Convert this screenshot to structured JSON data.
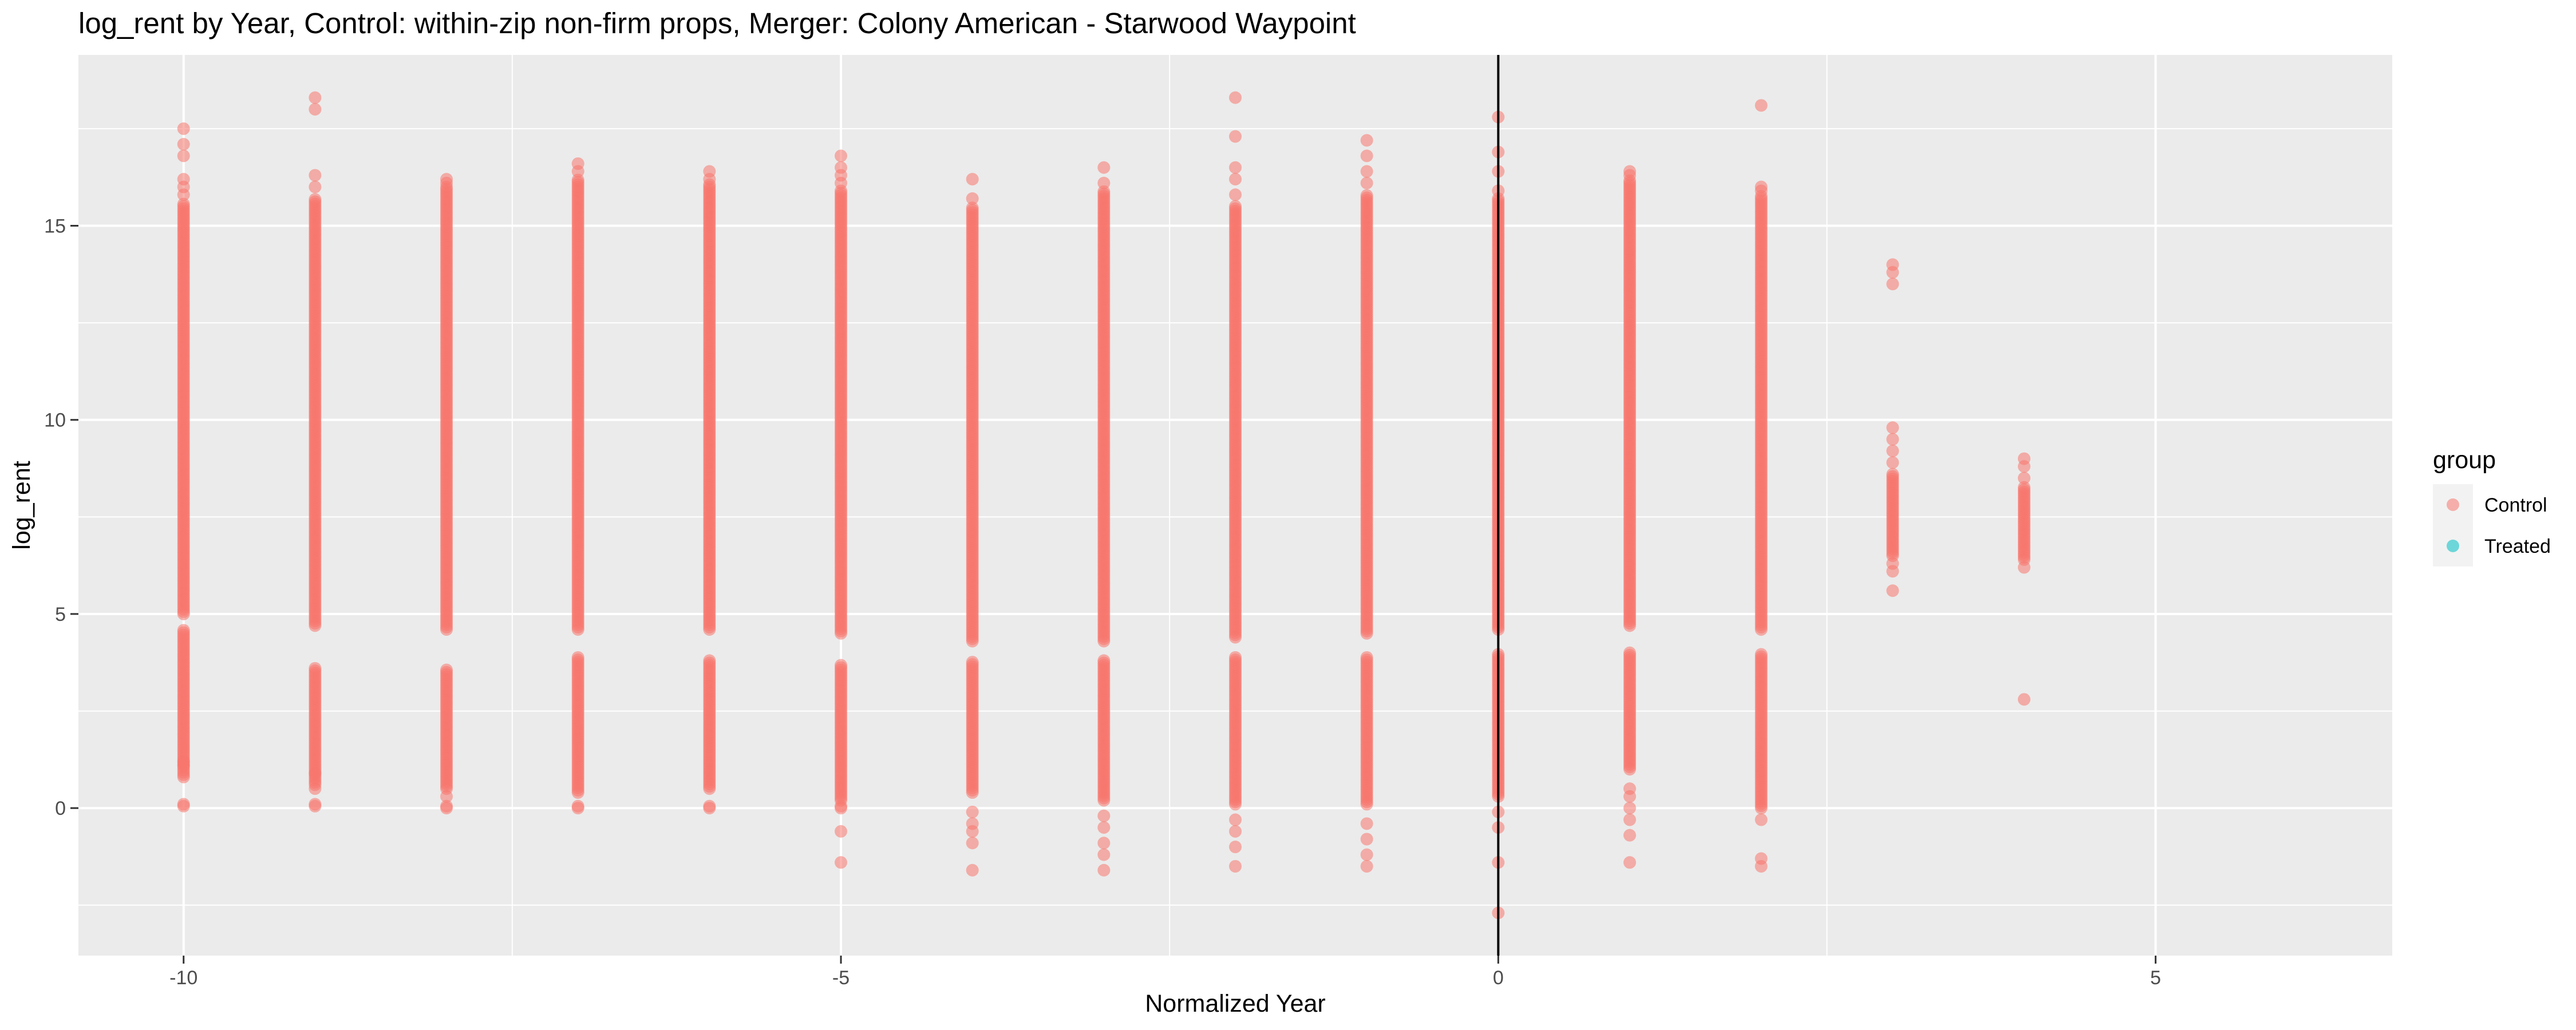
{
  "chart_data": {
    "type": "scatter",
    "title": "log_rent by Year, Control: within-zip non-firm props, Merger: Colony American - Starwood Waypoint",
    "xlabel": "Normalized Year",
    "ylabel": "log_rent",
    "xlim": [
      -10.8,
      6.8
    ],
    "ylim": [
      -3.8,
      19.4
    ],
    "x_ticks": [
      -10,
      -5,
      0,
      5
    ],
    "y_ticks": [
      0,
      5,
      10,
      15
    ],
    "x_tick_labels": [
      "-10",
      "-5",
      "0",
      "5"
    ],
    "y_tick_labels": [
      "0",
      "5",
      "10",
      "15"
    ],
    "vline_x": 0,
    "background": "#ebebeb",
    "grid": true,
    "legend": {
      "title": "group",
      "placement": "right",
      "entries": [
        {
          "name": "Control",
          "color": "#f8766d"
        },
        {
          "name": "Treated",
          "color": "#00bfc4"
        }
      ]
    },
    "series": [
      {
        "name": "Control",
        "color": "#f8766d",
        "columns": [
          {
            "x": -10,
            "dense_ranges": [
              [
                0.8,
                4.6
              ],
              [
                5.0,
                15.6
              ]
            ],
            "outliers": [
              0.05,
              0.1,
              1.1,
              1.2,
              15.8,
              16.0,
              16.2,
              16.8,
              17.1,
              17.5
            ]
          },
          {
            "x": -9,
            "dense_ranges": [
              [
                0.6,
                3.6
              ],
              [
                4.7,
                15.7
              ]
            ],
            "outliers": [
              0.05,
              0.1,
              0.5,
              0.9,
              16.0,
              16.3,
              18.0,
              18.3
            ]
          },
          {
            "x": -8,
            "dense_ranges": [
              [
                0.5,
                3.6
              ],
              [
                4.6,
                16.0
              ]
            ],
            "outliers": [
              0.0,
              0.05,
              0.3,
              16.1,
              16.2
            ]
          },
          {
            "x": -7,
            "dense_ranges": [
              [
                0.4,
                3.9
              ],
              [
                4.6,
                16.2
              ]
            ],
            "outliers": [
              0.0,
              0.05,
              16.4,
              16.6
            ]
          },
          {
            "x": -6,
            "dense_ranges": [
              [
                0.5,
                3.8
              ],
              [
                4.6,
                16.1
              ]
            ],
            "outliers": [
              0.0,
              0.05,
              16.2,
              16.4
            ]
          },
          {
            "x": -5,
            "dense_ranges": [
              [
                0.2,
                3.7
              ],
              [
                4.5,
                15.9
              ]
            ],
            "outliers": [
              -1.4,
              -0.6,
              0.0,
              0.05,
              16.1,
              16.3,
              16.5,
              16.8
            ]
          },
          {
            "x": -4,
            "dense_ranges": [
              [
                0.4,
                3.8
              ],
              [
                4.3,
                15.5
              ]
            ],
            "outliers": [
              -1.6,
              -0.9,
              -0.6,
              -0.4,
              -0.1,
              15.7,
              16.2
            ]
          },
          {
            "x": -3,
            "dense_ranges": [
              [
                0.2,
                3.8
              ],
              [
                4.3,
                15.9
              ]
            ],
            "outliers": [
              -1.6,
              -1.2,
              -0.9,
              -0.5,
              -0.2,
              16.1,
              16.5
            ]
          },
          {
            "x": -2,
            "dense_ranges": [
              [
                0.1,
                3.9
              ],
              [
                4.4,
                15.5
              ]
            ],
            "outliers": [
              -1.5,
              -1.0,
              -0.6,
              -0.3,
              15.8,
              16.2,
              16.5,
              17.3,
              18.3
            ]
          },
          {
            "x": -1,
            "dense_ranges": [
              [
                0.1,
                3.9
              ],
              [
                4.5,
                15.8
              ]
            ],
            "outliers": [
              -1.5,
              -1.2,
              -0.8,
              -0.4,
              16.1,
              16.4,
              16.8,
              17.2
            ]
          },
          {
            "x": 0,
            "dense_ranges": [
              [
                0.3,
                4.0
              ],
              [
                4.6,
                15.7
              ]
            ],
            "outliers": [
              -2.7,
              -1.4,
              -0.5,
              -0.1,
              15.9,
              16.4,
              16.9,
              17.8
            ]
          },
          {
            "x": 1,
            "dense_ranges": [
              [
                1.0,
                4.0
              ],
              [
                4.7,
                16.2
              ]
            ],
            "outliers": [
              -1.4,
              -0.7,
              -0.3,
              0.0,
              0.3,
              0.5,
              16.3,
              16.4
            ]
          },
          {
            "x": 2,
            "dense_ranges": [
              [
                0.0,
                4.0
              ],
              [
                4.6,
                15.8
              ]
            ],
            "outliers": [
              -1.5,
              -1.3,
              -0.3,
              15.9,
              16.0,
              18.1
            ]
          },
          {
            "x": 3,
            "dense_ranges": [
              [
                6.5,
                8.6
              ]
            ],
            "outliers": [
              5.6,
              6.1,
              6.3,
              8.9,
              9.2,
              9.5,
              9.8,
              13.5,
              13.8,
              14.0
            ]
          },
          {
            "x": 4,
            "dense_ranges": [
              [
                6.4,
                8.3
              ]
            ],
            "outliers": [
              2.8,
              6.2,
              8.5,
              8.8,
              9.0
            ]
          }
        ]
      },
      {
        "name": "Treated",
        "color": "#00bfc4",
        "columns": []
      }
    ]
  }
}
